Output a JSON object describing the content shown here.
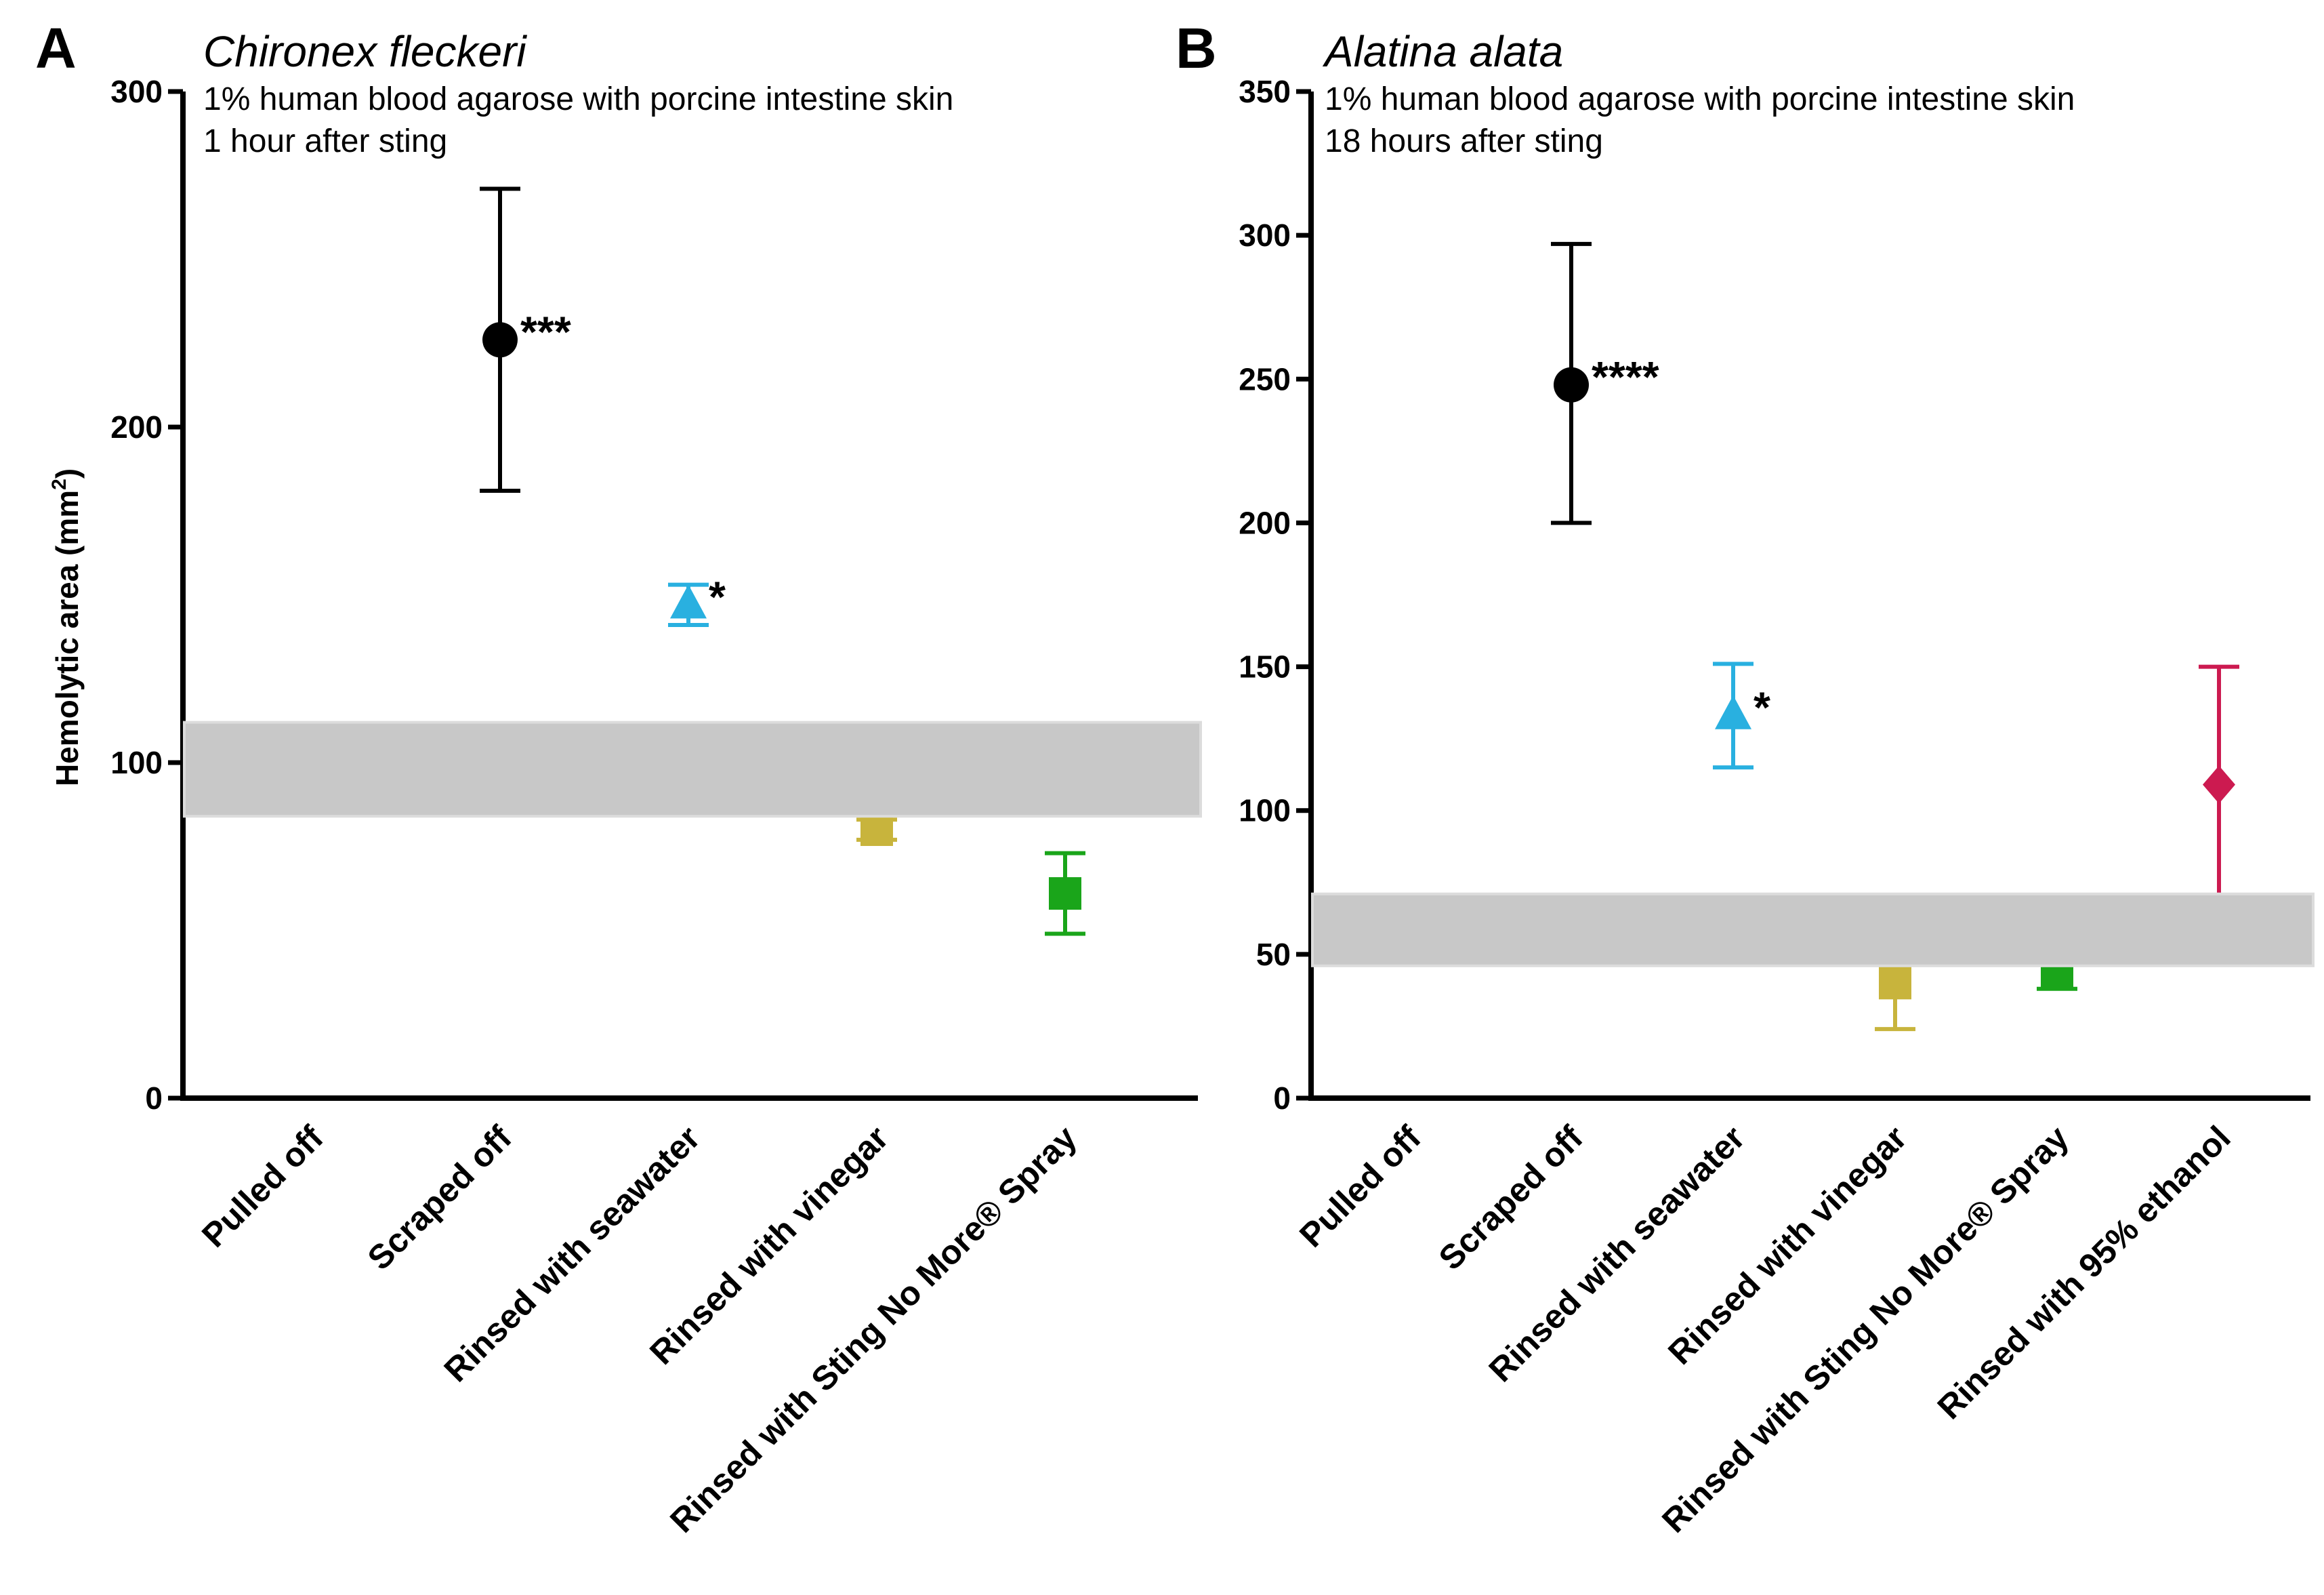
{
  "figure": {
    "y_axis_label": "Hemolytic area (mm",
    "y_axis_label_sup": "2",
    "y_axis_label_end": ")"
  },
  "chart_data": [
    {
      "type": "scatter",
      "panel": "A",
      "title": "Chironex fleckeri",
      "subtitle_lines": [
        "1% human blood agarose with porcine intestine skin",
        "1 hour after sting"
      ],
      "ylabel": "Hemolytic area (mm2)",
      "ylim": [
        0,
        300
      ],
      "yticks": [
        0,
        100,
        200,
        300
      ],
      "categories": [
        "Pulled off",
        "Scraped off",
        "Rinsed with seawater",
        "Rinsed with vinegar",
        "Rinsed with Sting No More® Spray"
      ],
      "shaded_band": [
        84,
        112
      ],
      "band_color": "#c8c8c8",
      "series": [
        {
          "category": "Scraped off",
          "marker": "circle",
          "color": "#000000",
          "mean": 226,
          "error_low": 181,
          "error_high": 271,
          "significance": "***"
        },
        {
          "category": "Rinsed with seawater",
          "marker": "triangle",
          "color": "#29b0e0",
          "mean": 147,
          "error_low": 141,
          "error_high": 153,
          "significance": "*"
        },
        {
          "category": "Rinsed with vinegar",
          "marker": "square",
          "color": "#c8b43c",
          "mean": 80,
          "error_low": 77,
          "error_high": 83,
          "significance": ""
        },
        {
          "category": "Rinsed with Sting No More® Spray",
          "marker": "square",
          "color": "#1aa51a",
          "mean": 61,
          "error_low": 49,
          "error_high": 73,
          "significance": ""
        }
      ]
    },
    {
      "type": "scatter",
      "panel": "B",
      "title": "Alatina alata",
      "subtitle_lines": [
        "1% human blood agarose with porcine intestine skin",
        "18 hours after sting"
      ],
      "ylabel": "",
      "ylim": [
        0,
        350
      ],
      "yticks": [
        0,
        50,
        100,
        150,
        200,
        250,
        300,
        350
      ],
      "categories": [
        "Pulled off",
        "Scraped off",
        "Rinsed with seawater",
        "Rinsed with vinegar",
        "Rinsed with Sting No More® Spray",
        "Rinsed with 95% ethanol"
      ],
      "shaded_band": [
        46,
        71
      ],
      "band_color": "#c8c8c8",
      "series": [
        {
          "category": "Scraped off",
          "marker": "circle",
          "color": "#000000",
          "mean": 248,
          "error_low": 200,
          "error_high": 297,
          "significance": "****"
        },
        {
          "category": "Rinsed with seawater",
          "marker": "triangle",
          "color": "#29b0e0",
          "mean": 133,
          "error_low": 115,
          "error_high": 151,
          "significance": "*"
        },
        {
          "category": "Rinsed with vinegar",
          "marker": "square",
          "color": "#c8b43c",
          "mean": 40,
          "error_low": 24,
          "error_high": 56,
          "significance": ""
        },
        {
          "category": "Rinsed with Sting No More® Spray",
          "marker": "square",
          "color": "#1aa51a",
          "mean": 44,
          "error_low": 38,
          "error_high": 50,
          "significance": ""
        },
        {
          "category": "Rinsed with 95% ethanol",
          "marker": "diamond",
          "color": "#cc1a50",
          "mean": 109,
          "error_low": 68,
          "error_high": 150,
          "significance": ""
        }
      ]
    }
  ]
}
